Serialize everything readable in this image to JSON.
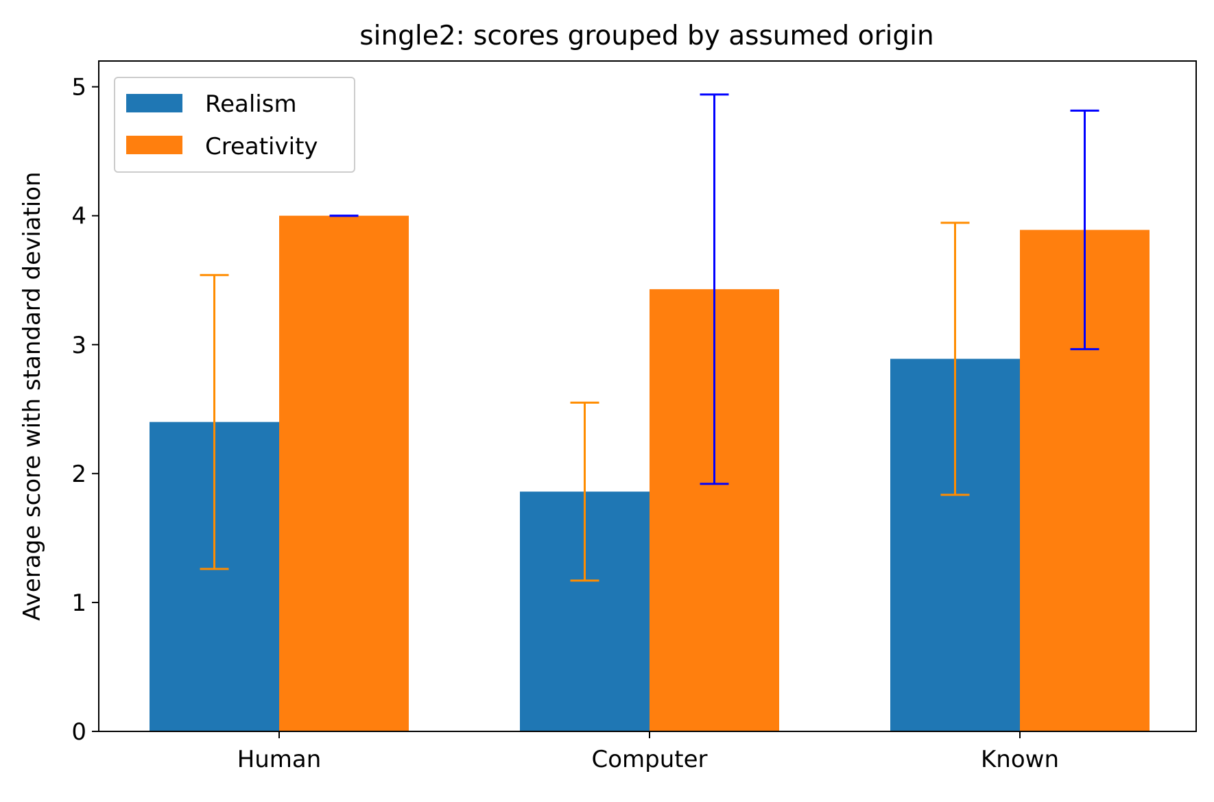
{
  "chart_data": {
    "type": "bar",
    "title": "single2: scores grouped by assumed origin",
    "xlabel": "",
    "ylabel": "Average score with standard deviation",
    "categories": [
      "Human",
      "Computer",
      "Known"
    ],
    "series": [
      {
        "name": "Realism",
        "values": [
          2.4,
          1.86,
          2.89
        ],
        "std": [
          1.14,
          0.69,
          1.055
        ],
        "color": "#1f77b4",
        "errorbar_color": "#ff8c00"
      },
      {
        "name": "Creativity",
        "values": [
          4.0,
          3.43,
          3.89
        ],
        "std": [
          0.0,
          1.51,
          0.925
        ],
        "color": "#ff7f0e",
        "errorbar_color": "#0000ff"
      }
    ],
    "ylim": [
      0,
      5.2
    ],
    "yticks": [
      0,
      1,
      2,
      3,
      4,
      5
    ],
    "grid": false,
    "legend_position": "upper-left"
  }
}
